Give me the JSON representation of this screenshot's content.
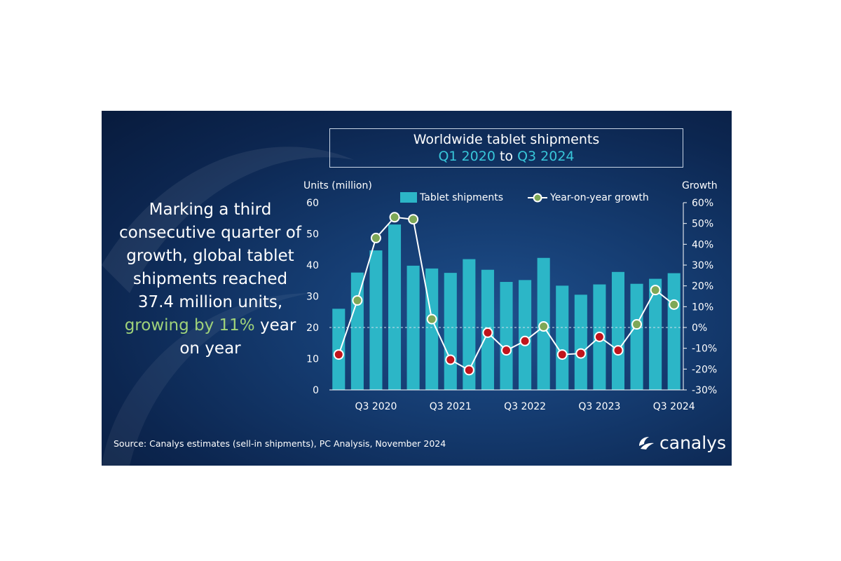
{
  "title": {
    "line1": "Worldwide tablet shipments",
    "range_start": "Q1 2020",
    "range_to": "to",
    "range_end": "Q3 2024"
  },
  "headline": {
    "text": "Marking a third consecutive quarter of growth, global tablet shipments reached 37.4 million units,",
    "highlight": "growing by 11%",
    "tail": "year on year"
  },
  "source": "Source: Canalys estimates (sell-in shipments), PC Analysis, November 2024",
  "logo_text": "canalys",
  "colors": {
    "bar": "#2cb6c7",
    "line": "#ffffff",
    "marker_positive": "#7ea857",
    "marker_negative": "#c0141c",
    "highlight_title": "#38c6d9",
    "highlight_headline": "#9fd27a"
  },
  "chart_data": {
    "type": "bar+line",
    "categories": [
      "Q1 2020",
      "Q2 2020",
      "Q3 2020",
      "Q4 2020",
      "Q1 2021",
      "Q2 2021",
      "Q3 2021",
      "Q4 2021",
      "Q1 2022",
      "Q2 2022",
      "Q3 2022",
      "Q4 2022",
      "Q1 2023",
      "Q2 2023",
      "Q3 2023",
      "Q4 2023",
      "Q1 2024",
      "Q2 2024",
      "Q3 2024"
    ],
    "x_tick_labels": [
      "",
      "",
      "Q3 2020",
      "",
      "",
      "",
      "Q3 2021",
      "",
      "",
      "",
      "Q3 2022",
      "",
      "",
      "",
      "Q3 2023",
      "",
      "",
      "",
      "Q3 2024"
    ],
    "series": [
      {
        "name": "Tablet shipments",
        "type": "bar",
        "axis": "left",
        "values": [
          26.0,
          37.6,
          44.7,
          53.0,
          39.8,
          38.9,
          37.5,
          41.9,
          38.5,
          34.6,
          35.2,
          42.3,
          33.4,
          30.5,
          33.8,
          37.8,
          34.0,
          35.6,
          37.4
        ]
      },
      {
        "name": "Year-on-year growth",
        "type": "line",
        "axis": "right",
        "values": [
          -13,
          13,
          43,
          53,
          52,
          4,
          -15.5,
          -20.5,
          -2.5,
          -11,
          -6.5,
          0.5,
          -13,
          -12.5,
          -4.5,
          -11,
          1.5,
          18,
          11
        ]
      }
    ],
    "y_left": {
      "label": "Units (million)",
      "min": 0,
      "max": 60,
      "ticks": [
        "0",
        "10",
        "20",
        "30",
        "40",
        "50",
        "60"
      ]
    },
    "y_right": {
      "label": "Growth",
      "min": -30,
      "max": 60,
      "ticks": [
        "-30%",
        "-20%",
        "-10%",
        "0%",
        "10%",
        "20%",
        "30%",
        "40%",
        "50%",
        "60%"
      ]
    },
    "legend_position": "top"
  }
}
